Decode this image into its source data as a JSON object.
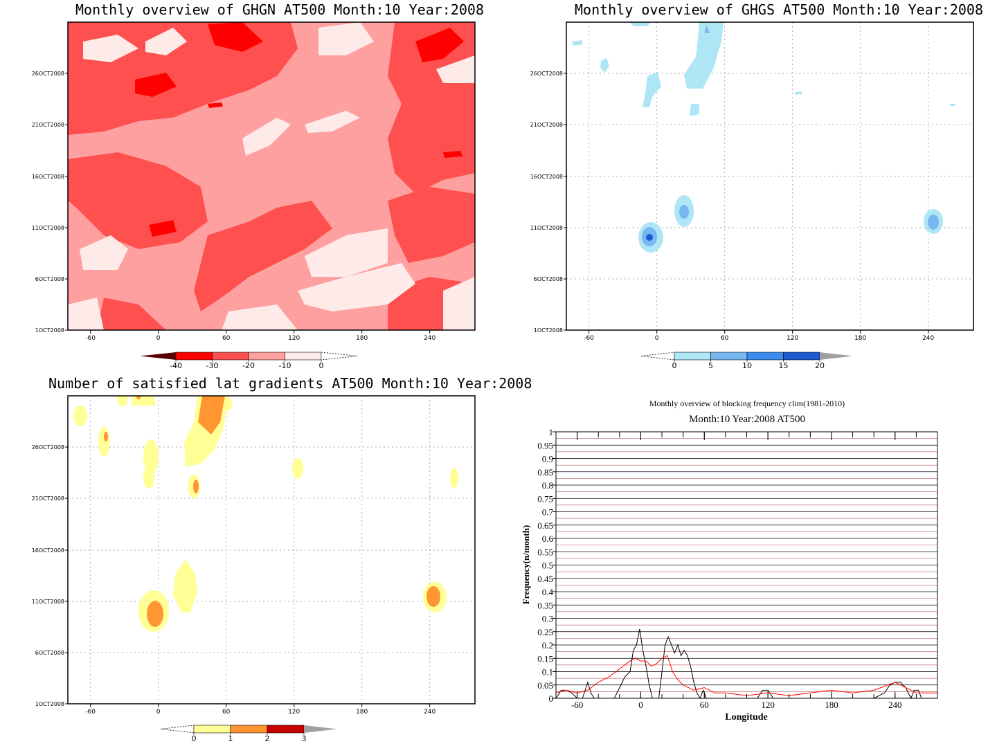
{
  "panels": {
    "ghgn": {
      "title": "Monthly overview of GHGN AT500 Month:10 Year:2008",
      "y_ticks": [
        "26OCT2008",
        "21OCT2008",
        "16OCT2008",
        "11OCT2008",
        "6OCT2008",
        "1OCT2008"
      ],
      "x_ticks": [
        "-60",
        "0",
        "60",
        "120",
        "180",
        "240"
      ],
      "colorbar": {
        "labels": [
          "-40",
          "-30",
          "-20",
          "-10",
          "0"
        ],
        "colors": [
          "#5a0000",
          "#ff0000",
          "#ff5050",
          "#ffa0a0",
          "#ffeaea",
          "#ffffff"
        ]
      }
    },
    "ghgs": {
      "title": "Monthly overview of GHGS AT500 Month:10 Year:2008",
      "y_ticks": [
        "26OCT2008",
        "21OCT2008",
        "16OCT2008",
        "11OCT2008",
        "6OCT2008",
        "1OCT2008"
      ],
      "x_ticks": [
        "-60",
        "0",
        "60",
        "120",
        "180",
        "240"
      ],
      "colorbar": {
        "labels": [
          "0",
          "5",
          "10",
          "15",
          "20"
        ],
        "colors": [
          "#ffffff",
          "#aee6f5",
          "#78b8f0",
          "#3c8cf0",
          "#1e5ad2",
          "#a0a0a0"
        ]
      }
    },
    "lat_gradients": {
      "title": "Number of satisfied lat gradients AT500 Month:10 Year:2008",
      "y_ticks": [
        "26OCT2008",
        "21OCT2008",
        "16OCT2008",
        "11OCT2008",
        "6OCT2008",
        "1OCT2008"
      ],
      "x_ticks": [
        "-60",
        "0",
        "60",
        "120",
        "180",
        "240"
      ],
      "colorbar": {
        "labels": [
          "0",
          "1",
          "2",
          "3"
        ],
        "colors": [
          "#ffffff",
          "#ffff96",
          "#ff9632",
          "#c80000",
          "#a0a0a0"
        ]
      }
    }
  },
  "chart_data": {
    "type": "line",
    "title": "Monthly overview of blocking frequency clim(1981-2010)",
    "subtitle": "Month:10 Year:2008  AT500",
    "xlabel": "Longitude",
    "ylabel": "Frequency(n/month)",
    "xlim": [
      -80,
      280
    ],
    "ylim": [
      0,
      1
    ],
    "x_ticks": [
      "-60",
      "0",
      "60",
      "120",
      "180",
      "240"
    ],
    "y_ticks": [
      "0",
      "0.05",
      "0.1",
      "0.15",
      "0.2",
      "0.25",
      "0.3",
      "0.35",
      "0.4",
      "0.45",
      "0.5",
      "0.55",
      "0.6",
      "0.65",
      "0.7",
      "0.75",
      "0.8",
      "0.85",
      "0.9",
      "0.95",
      "1"
    ],
    "grid": true,
    "series": [
      {
        "color": "#000000",
        "x": [
          -80,
          -75,
          -70,
          -65,
          -60,
          -55,
          -50,
          -47,
          -44,
          -40,
          -35,
          -30,
          -25,
          -20,
          -15,
          -10,
          -7,
          -4,
          -1,
          2,
          5,
          8,
          11,
          14,
          17,
          20,
          23,
          26,
          29,
          32,
          35,
          38,
          41,
          44,
          47,
          50,
          53,
          56,
          59,
          62,
          65,
          70,
          80,
          90,
          100,
          110,
          115,
          120,
          125,
          130,
          140,
          150,
          160,
          170,
          180,
          190,
          200,
          210,
          220,
          230,
          235,
          240,
          245,
          250,
          255,
          258,
          262,
          265,
          270,
          280
        ],
        "y": [
          0,
          0.03,
          0.03,
          0.02,
          0,
          0,
          0.06,
          0.02,
          0,
          0,
          0,
          0,
          0,
          0.04,
          0.08,
          0.1,
          0.18,
          0.2,
          0.26,
          0.18,
          0.12,
          0.05,
          0,
          0,
          0,
          0.1,
          0.2,
          0.23,
          0.2,
          0.17,
          0.2,
          0.16,
          0.18,
          0.16,
          0.12,
          0.06,
          0.02,
          0,
          0.03,
          0,
          0,
          0,
          0,
          0,
          0,
          0,
          0.03,
          0.03,
          0,
          0,
          0,
          0,
          0,
          0,
          0,
          0,
          0,
          0,
          0,
          0.02,
          0.05,
          0.06,
          0.06,
          0.04,
          0,
          0.03,
          0.03,
          0,
          0,
          0
        ]
      },
      {
        "color": "#ff0000",
        "x": [
          -80,
          -70,
          -60,
          -50,
          -40,
          -30,
          -20,
          -10,
          -5,
          0,
          5,
          10,
          15,
          20,
          25,
          30,
          35,
          40,
          45,
          50,
          60,
          70,
          80,
          100,
          120,
          140,
          160,
          180,
          200,
          220,
          240,
          250,
          260,
          270,
          280
        ],
        "y": [
          0.02,
          0.03,
          0.02,
          0.03,
          0.06,
          0.08,
          0.11,
          0.14,
          0.15,
          0.14,
          0.14,
          0.12,
          0.13,
          0.15,
          0.16,
          0.1,
          0.07,
          0.05,
          0.04,
          0.03,
          0.04,
          0.02,
          0.02,
          0.01,
          0.02,
          0.01,
          0.02,
          0.03,
          0.02,
          0.03,
          0.06,
          0.04,
          0.02,
          0.02,
          0.02
        ]
      }
    ]
  }
}
